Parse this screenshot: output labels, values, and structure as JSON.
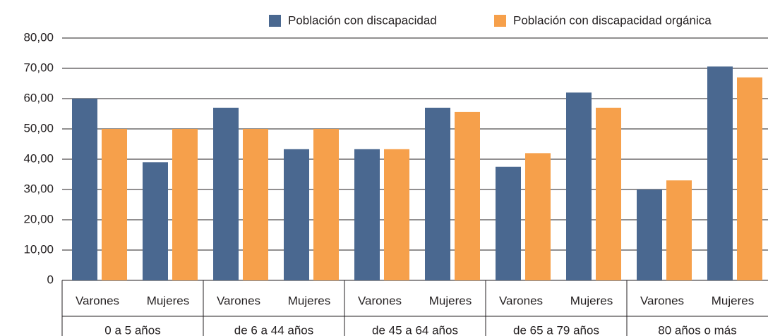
{
  "chart_data": {
    "type": "bar",
    "categories": [
      "Varones",
      "Mujeres",
      "Varones",
      "Mujeres",
      "Varones",
      "Mujeres",
      "Varones",
      "Mujeres",
      "Varones",
      "Mujeres"
    ],
    "groups": [
      "0 a 5 años",
      "de 6 a 44 años",
      "de 45 a 64 años",
      "de 65 a 79 años",
      "80 años o más"
    ],
    "series": [
      {
        "name": "Población con discapacidad",
        "color": "#4a6890",
        "values": [
          60,
          39,
          57,
          43.3,
          43.3,
          57,
          37.5,
          62,
          30,
          70.6
        ]
      },
      {
        "name": "Población con discapacidad orgánica",
        "color": "#f6a04b",
        "values": [
          50,
          50,
          50,
          50,
          43.3,
          55.6,
          42,
          57,
          33,
          67
        ]
      }
    ],
    "ylim": [
      0,
      80
    ],
    "yticks": [
      0,
      {
        "value": 10,
        "label": "10,00"
      },
      {
        "value": 20,
        "label": "20,00"
      },
      {
        "value": 30,
        "label": "30,00"
      },
      {
        "value": 40,
        "label": "40,00"
      },
      {
        "value": 50,
        "label": "50,00"
      },
      {
        "value": 60,
        "label": "60,00"
      },
      {
        "value": 70,
        "label": "70,00"
      },
      {
        "value": 80,
        "label": "80,00"
      }
    ],
    "grid": true,
    "legend": "top"
  }
}
